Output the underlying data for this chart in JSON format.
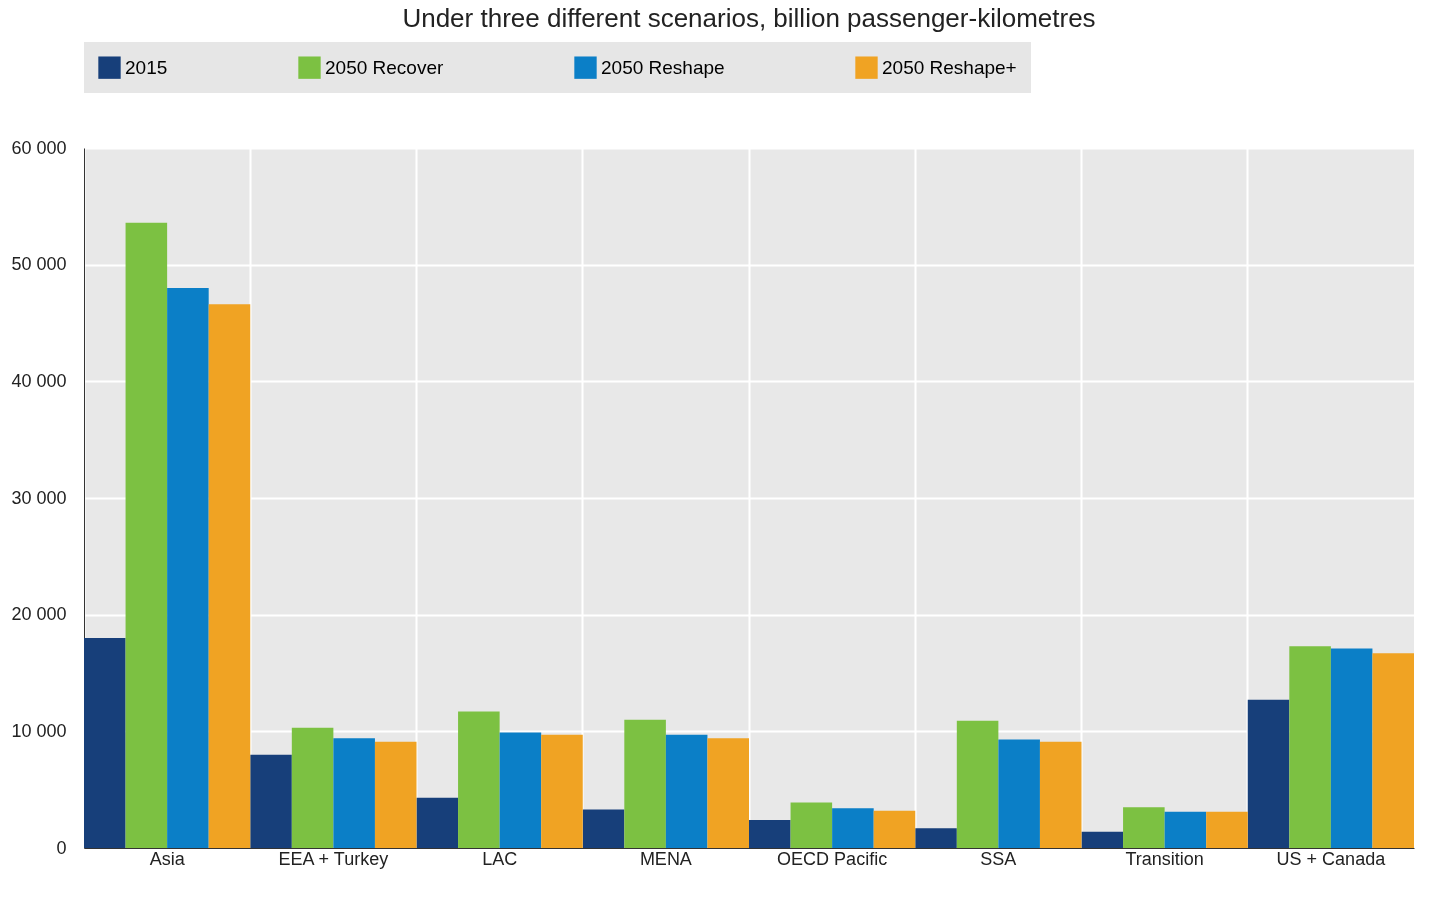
{
  "chart_data": {
    "type": "bar",
    "title": "Under three different scenarios, billion passenger-kilometres",
    "categories": [
      "Asia",
      "EEA + Turkey",
      "LAC",
      "MENA",
      "OECD Pacific",
      "SSA",
      "Transition",
      "US + Canada"
    ],
    "series": [
      {
        "name": "2015",
        "color": "#173f7a",
        "values": [
          18000,
          8000,
          4300,
          3300,
          2400,
          1700,
          1400,
          12700
        ]
      },
      {
        "name": "2050 Recover",
        "color": "#7cc142",
        "values": [
          53600,
          10300,
          11700,
          11000,
          3900,
          10900,
          3500,
          17300
        ]
      },
      {
        "name": "2050 Reshape",
        "color": "#0b7fc7",
        "values": [
          48000,
          9400,
          9900,
          9700,
          3400,
          9300,
          3100,
          17100
        ]
      },
      {
        "name": "2050 Reshape+",
        "color": "#f0a323",
        "values": [
          46600,
          9100,
          9700,
          9400,
          3200,
          9100,
          3100,
          16700
        ]
      }
    ],
    "ylim": [
      0,
      60000
    ],
    "yticks": [
      0,
      {
        "value": 10000,
        "label": "10 000"
      },
      {
        "value": 20000,
        "label": "20 000"
      },
      {
        "value": 30000,
        "label": "30 000"
      },
      {
        "value": 40000,
        "label": "40 000"
      },
      {
        "value": 50000,
        "label": "50 000"
      },
      {
        "value": 60000,
        "label": "60 000"
      }
    ],
    "grid": true,
    "legend": "top"
  }
}
